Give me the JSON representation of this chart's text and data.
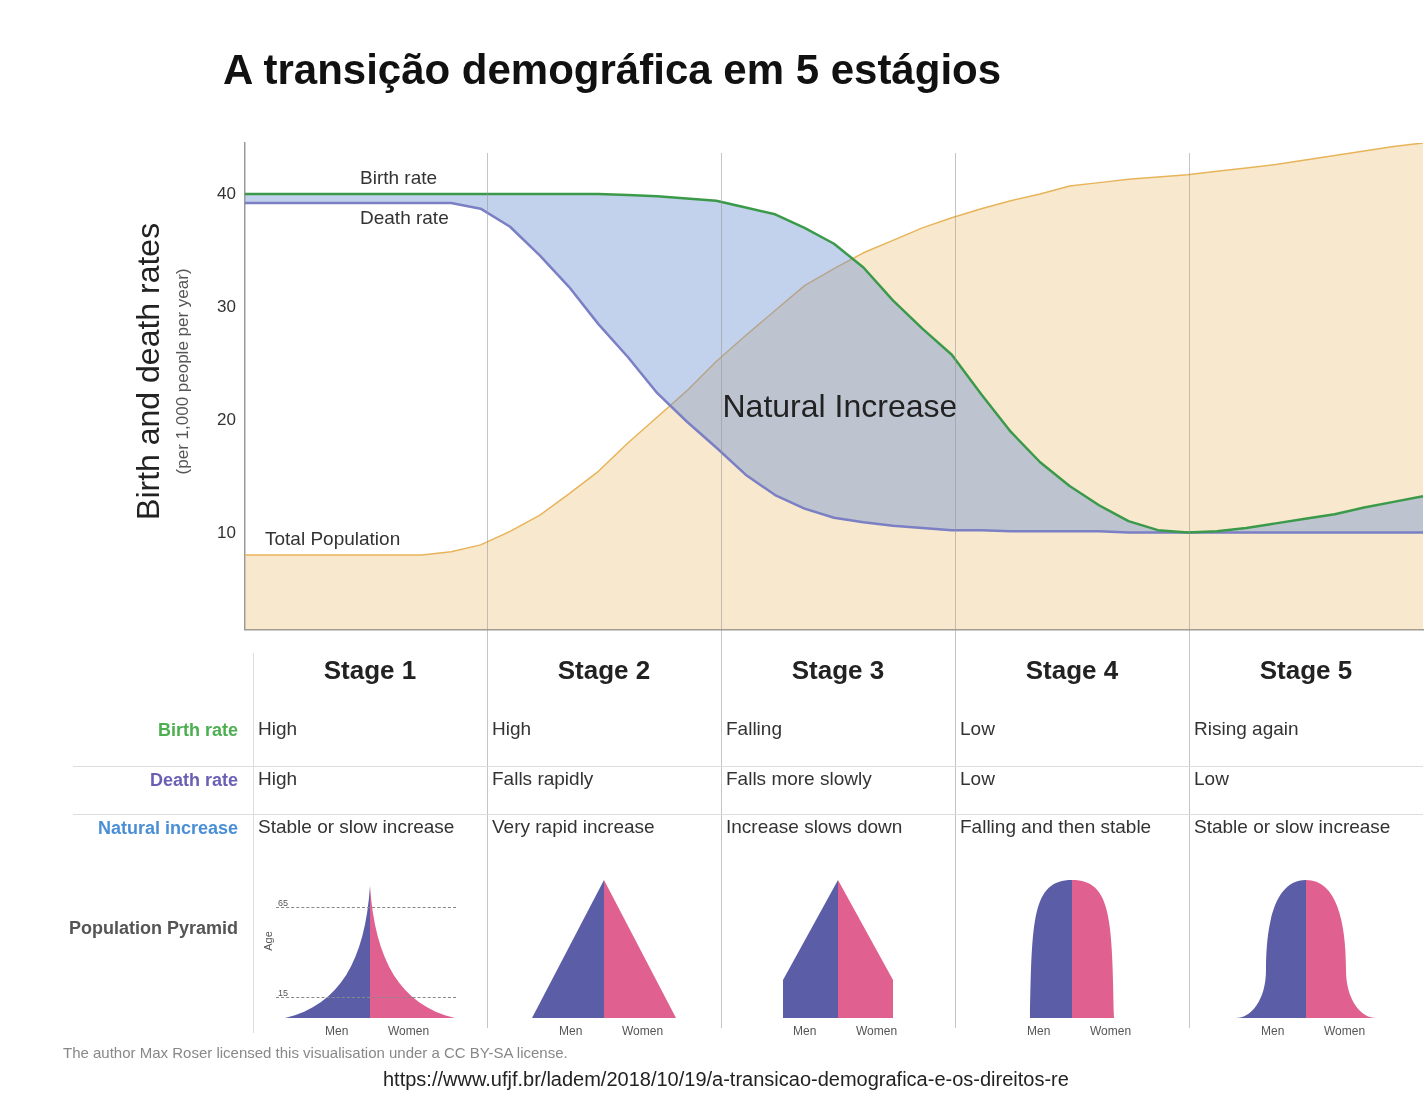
{
  "chart_data": [
    {
      "type": "line",
      "title": "A transição demográfica em 5 estágios",
      "ylabel": "Birth and death rates\n(per 1,000 people per year)",
      "categories": [
        null,
        null,
        null,
        null,
        null,
        null,
        null,
        null,
        null,
        null,
        null,
        null,
        null,
        null,
        null,
        null,
        null,
        null,
        null,
        null,
        null,
        null,
        null,
        null,
        null,
        null,
        null,
        null,
        null,
        null,
        null,
        null,
        null,
        null,
        null,
        null,
        null,
        null,
        null,
        null,
        null
      ],
      "ylim": [
        1.5,
        44.5
      ],
      "yticks": [
        10,
        20,
        30,
        40
      ],
      "tick_labels": "y",
      "grid": false,
      "legend": false,
      "series": [
        {
          "name": "Birth rate",
          "color": "#3a9a4a",
          "values": [
            40,
            40,
            40,
            40,
            40,
            40,
            40,
            40,
            40,
            40,
            40,
            40,
            40,
            39.9,
            39.8,
            39.6,
            39.4,
            38.8,
            38.2,
            37,
            35.6,
            33.5,
            30.6,
            28.1,
            25.8,
            22.3,
            19,
            16.3,
            14.2,
            12.5,
            11.1,
            10.3,
            10.1,
            10.2,
            10.5,
            10.9,
            11.3,
            11.7,
            12.3,
            12.8,
            13.3
          ]
        },
        {
          "name": "Death rate",
          "color": "#7b7fc4",
          "values": [
            39.2,
            39.2,
            39.2,
            39.2,
            39.2,
            39.2,
            39.2,
            39.2,
            38.7,
            37.1,
            34.6,
            31.8,
            28.5,
            25.6,
            22.4,
            19.9,
            17.6,
            15.2,
            13.4,
            12.2,
            11.4,
            11,
            10.7,
            10.5,
            10.3,
            10.3,
            10.2,
            10.2,
            10.2,
            10.2,
            10.1,
            10.1,
            10.1,
            10.1,
            10.1,
            10.1,
            10.1,
            10.1,
            10.1,
            10.1,
            10.1
          ]
        },
        {
          "name": "Total Population",
          "type": "area",
          "color": "#e8b45a",
          "values": [
            8.1,
            8.1,
            8.1,
            8.1,
            8.1,
            8.1,
            8.1,
            8.4,
            9,
            10.2,
            11.6,
            13.5,
            15.5,
            18,
            20.3,
            22.6,
            25.2,
            27.5,
            29.7,
            31.9,
            33.4,
            34.8,
            35.9,
            37,
            37.9,
            38.7,
            39.4,
            40,
            40.7,
            41,
            41.3,
            41.5,
            41.7,
            42,
            42.3,
            42.6,
            43,
            43.4,
            43.8,
            44.2,
            44.5
          ]
        }
      ],
      "annotations": [
        "Natural Increase",
        "The author Max Roser licensed this visualisation under a CC BY-SA license.",
        "https://www.ufjf.br/ladem/2018/10/19/a-transicao-demografica-e-os-direitos-re"
      ]
    },
    {
      "type": "other",
      "categories": [
        "Stage 1",
        "Stage 2",
        "Stage 3",
        "Stage 4",
        "Stage 5"
      ],
      "y_categories": [
        "Birth rate",
        "Death rate",
        "Natural increase",
        "Population Pyramid"
      ],
      "colors": [
        "#4caf50",
        "#6b5fb5",
        "#4a8fd6",
        "#555555"
      ],
      "cell_labels": [
        [
          "High",
          "High",
          "Falling",
          "Low",
          "Rising again"
        ],
        [
          "High",
          "Falls rapidly",
          "Falls more slowly",
          "Low",
          "Low"
        ],
        [
          "Stable or slow increase",
          "Very rapid increase",
          "Increase slows down",
          "Falling and then stable",
          "Stable or slow increase"
        ]
      ],
      "annotations": [
        "Men",
        "Women",
        "Age",
        "65",
        "15"
      ]
    }
  ]
}
